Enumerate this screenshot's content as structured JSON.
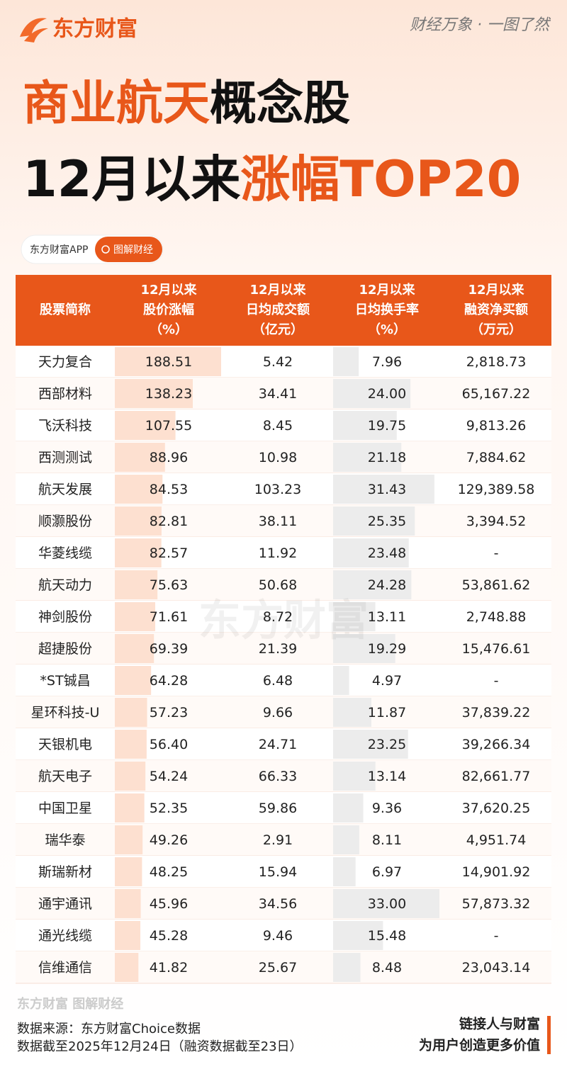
{
  "header": {
    "logo": "东方财富",
    "slogan": "财经万象 · 一图了然",
    "title_line1_highlight": "商业航天",
    "title_line1_rest": "概念股",
    "title_line2_start": "12月以来",
    "title_line2_highlight": "涨幅TOP20",
    "badge_app": "东方财富APP",
    "badge_search": "图解财经"
  },
  "table": {
    "columns": [
      [
        "股票简称"
      ],
      [
        "12月以来",
        "股价涨幅",
        "（%）"
      ],
      [
        "12月以来",
        "日均成交额",
        "（亿元）"
      ],
      [
        "12月以来",
        "日均换手率",
        "（%）"
      ],
      [
        "12月以来",
        "融资净买额",
        "（万元）"
      ]
    ],
    "rows": [
      [
        "天力复合",
        "188.51",
        "5.42",
        "7.96",
        "2,818.73"
      ],
      [
        "西部材料",
        "138.23",
        "34.41",
        "24.00",
        "65,167.22"
      ],
      [
        "飞沃科技",
        "107.55",
        "8.45",
        "19.75",
        "9,813.26"
      ],
      [
        "西测测试",
        "88.96",
        "10.98",
        "21.18",
        "7,884.62"
      ],
      [
        "航天发展",
        "84.53",
        "103.23",
        "31.43",
        "129,389.58"
      ],
      [
        "顺灏股份",
        "82.81",
        "38.11",
        "25.35",
        "3,394.52"
      ],
      [
        "华菱线缆",
        "82.57",
        "11.92",
        "23.48",
        "-"
      ],
      [
        "航天动力",
        "75.63",
        "50.68",
        "24.28",
        "53,861.62"
      ],
      [
        "神剑股份",
        "71.61",
        "8.72",
        "13.11",
        "2,748.88"
      ],
      [
        "超捷股份",
        "69.39",
        "21.39",
        "19.29",
        "15,476.61"
      ],
      [
        "*ST铖昌",
        "64.28",
        "6.48",
        "4.97",
        "-"
      ],
      [
        "星环科技-U",
        "57.23",
        "9.66",
        "11.87",
        "37,839.22"
      ],
      [
        "天银机电",
        "56.40",
        "24.71",
        "23.25",
        "39,266.34"
      ],
      [
        "航天电子",
        "54.24",
        "66.33",
        "13.14",
        "82,661.77"
      ],
      [
        "中国卫星",
        "52.35",
        "59.86",
        "9.36",
        "37,620.25"
      ],
      [
        "瑞华泰",
        "49.26",
        "2.91",
        "8.11",
        "4,951.74"
      ],
      [
        "斯瑞新材",
        "48.25",
        "15.94",
        "6.97",
        "14,901.92"
      ],
      [
        "通宇通讯",
        "45.96",
        "34.56",
        "33.00",
        "57,873.32"
      ],
      [
        "通光线缆",
        "45.28",
        "9.46",
        "15.48",
        "-"
      ],
      [
        "信维通信",
        "41.82",
        "25.67",
        "8.48",
        "23,043.14"
      ]
    ]
  },
  "footer": {
    "watermark": "东方财富 图解财经",
    "source": "数据来源：东方财富Choice数据",
    "date_note": "数据截至2025年12月24日（融资数据截至23日）",
    "tagline1": "链接人与财富",
    "tagline2": "为用户创造更多价值"
  }
}
